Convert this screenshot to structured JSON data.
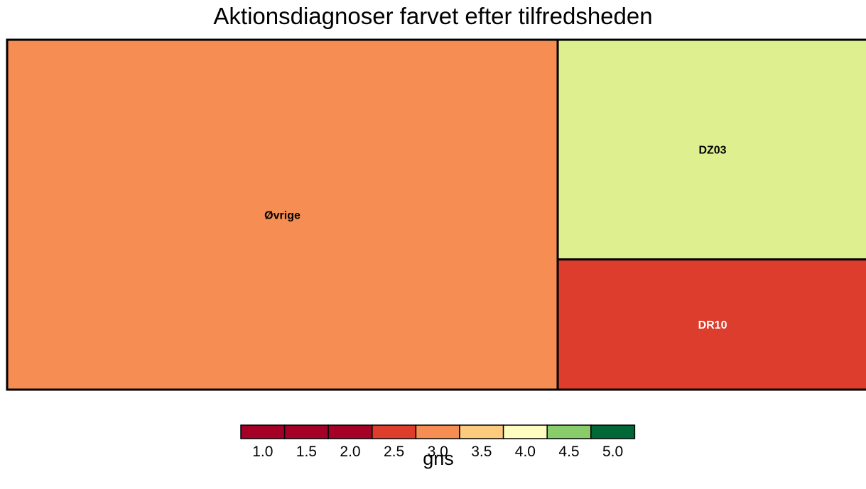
{
  "chart_data": {
    "type": "treemap",
    "title": "Aktionsdiagnoser farvet efter tilfredsheden",
    "tiles": [
      {
        "label": "Øvrige",
        "size_share": 0.64,
        "gns": 3.0,
        "color": "#F68D52",
        "label_color": "#000000"
      },
      {
        "label": "DZ03",
        "size_share": 0.226,
        "gns": 3.9,
        "color": "#DDEF8E",
        "label_color": "#000000"
      },
      {
        "label": "DR10",
        "size_share": 0.134,
        "gns": 2.5,
        "color": "#DD3D2D",
        "label_color": "#FFFFFF"
      }
    ],
    "legend": {
      "title": "gns",
      "tick_labels": [
        "1.0",
        "1.5",
        "2.0",
        "2.5",
        "3.0",
        "3.5",
        "4.0",
        "4.5",
        "5.0"
      ],
      "bins": [
        {
          "gns": 1.0,
          "color": "#A50026"
        },
        {
          "gns": 1.5,
          "color": "#A50026"
        },
        {
          "gns": 2.0,
          "color": "#A50026"
        },
        {
          "gns": 2.5,
          "color": "#DD3D2D"
        },
        {
          "gns": 3.0,
          "color": "#F68D52"
        },
        {
          "gns": 3.5,
          "color": "#FDCB7E"
        },
        {
          "gns": 4.0,
          "color": "#FEFEC0"
        },
        {
          "gns": 4.5,
          "color": "#88CD6A"
        },
        {
          "gns": 5.0,
          "color": "#006837"
        }
      ],
      "placement": "bottom"
    }
  }
}
